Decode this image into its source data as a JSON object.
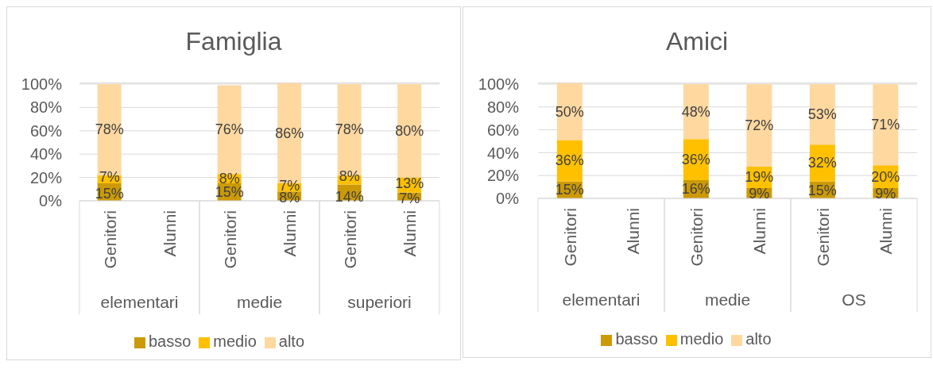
{
  "chart_data": [
    {
      "type": "bar",
      "title": "Famiglia",
      "categories": [
        "Genitori",
        "Alunni",
        "Genitori",
        "Alunni",
        "Genitori",
        "Alunni"
      ],
      "annotations": [
        "elementari",
        "medie",
        "superiori"
      ],
      "stacked": true,
      "series": [
        {
          "name": "basso",
          "color": "#cc9a06",
          "values": [
            15,
            null,
            15,
            8,
            14,
            7
          ],
          "value_labels": [
            "15%",
            null,
            "15%",
            "8%",
            "14%",
            "7%"
          ]
        },
        {
          "name": "medio",
          "color": "#ffc000",
          "values": [
            7,
            null,
            8,
            7,
            8,
            13
          ],
          "value_labels": [
            "7%",
            null,
            "8%",
            "7%",
            "8%",
            "13%"
          ]
        },
        {
          "name": "alto",
          "color": "#ffd8a0",
          "values": [
            78,
            null,
            76,
            86,
            78,
            80
          ],
          "value_labels": [
            "78%",
            null,
            "76%",
            "86%",
            "78%",
            "80%"
          ]
        }
      ],
      "ylim": [
        0,
        101
      ],
      "yticks": [
        {
          "value": 0,
          "label": "0%"
        },
        {
          "value": 20,
          "label": "20%"
        },
        {
          "value": 40,
          "label": "40%"
        },
        {
          "value": 60,
          "label": "60%"
        },
        {
          "value": 80,
          "label": "80%"
        },
        {
          "value": 100,
          "label": "100%"
        }
      ],
      "grid": "y",
      "legend": "bottom"
    },
    {
      "type": "bar",
      "title": "Amici",
      "categories": [
        "Genitori",
        "Alunni",
        "Genitori",
        "Alunni",
        "Genitori",
        "Alunni"
      ],
      "annotations": [
        "elementari",
        "medie",
        "OS"
      ],
      "stacked": true,
      "series": [
        {
          "name": "basso",
          "color": "#cc9a06",
          "values": [
            15,
            null,
            16,
            9,
            15,
            9
          ],
          "value_labels": [
            "15%",
            null,
            "16%",
            "9%",
            "15%",
            "9%"
          ]
        },
        {
          "name": "medio",
          "color": "#ffc000",
          "values": [
            36,
            null,
            36,
            19,
            32,
            20
          ],
          "value_labels": [
            "36%",
            null,
            "36%",
            "19%",
            "32%",
            "20%"
          ]
        },
        {
          "name": "alto",
          "color": "#ffd8a0",
          "values": [
            50,
            null,
            48,
            72,
            53,
            71
          ],
          "value_labels": [
            "50%",
            null,
            "48%",
            "72%",
            "53%",
            "71%"
          ]
        }
      ],
      "ylim": [
        0,
        101
      ],
      "yticks": [
        {
          "value": 0,
          "label": "0%"
        },
        {
          "value": 20,
          "label": "20%"
        },
        {
          "value": 40,
          "label": "40%"
        },
        {
          "value": 60,
          "label": "60%"
        },
        {
          "value": 80,
          "label": "80%"
        },
        {
          "value": 100,
          "label": "100%"
        }
      ],
      "grid": "y",
      "legend": "bottom"
    }
  ]
}
